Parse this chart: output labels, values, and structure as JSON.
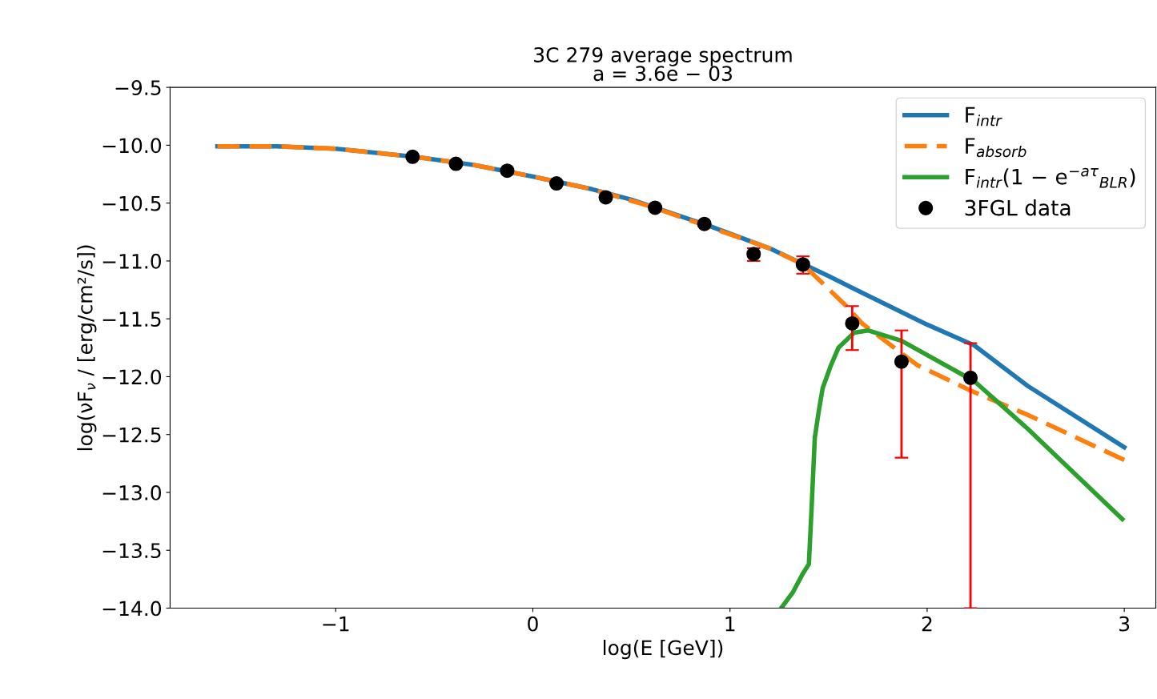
{
  "chart_data": {
    "type": "line",
    "title": "3C 279 average spectrum",
    "subtitle": "a = 3.6e − 03",
    "xlabel": "log(E [GeV])",
    "ylabel": "log(νF$_{ν}$ / [erg/cm²/s])",
    "xlim": [
      -1.84,
      3.16
    ],
    "xticks": [
      {
        "value": -1,
        "label": "−1"
      },
      0,
      1,
      2,
      3
    ],
    "ylim": [
      -14.0,
      -9.5
    ],
    "yticks": [
      {
        "value": -14.0,
        "label": "−14.0"
      },
      {
        "value": -13.5,
        "label": "−13.5"
      },
      {
        "value": -13.0,
        "label": "−13.0"
      },
      {
        "value": -12.5,
        "label": "−12.5"
      },
      {
        "value": -12.0,
        "label": "−12.0"
      },
      {
        "value": -11.5,
        "label": "−11.5"
      },
      {
        "value": -11.0,
        "label": "−11.0"
      },
      {
        "value": -10.5,
        "label": "−10.5"
      },
      {
        "value": -10.0,
        "label": "−10.0"
      },
      {
        "value": -9.5,
        "label": "−9.5"
      }
    ],
    "grid": false,
    "legend": "top right",
    "series": [
      {
        "name": "F$_{intr}$",
        "color": "#1f77b4",
        "line_style": "solid",
        "x": [
          -1.6,
          -1.3,
          -1.0,
          -0.6,
          -0.3,
          0,
          0.3,
          0.5,
          0.9,
          1.2,
          1.5,
          1.64,
          2.0,
          2.24,
          2.51,
          3.0
        ],
        "values": [
          -10.01,
          -10.01,
          -10.03,
          -10.1,
          -10.17,
          -10.27,
          -10.38,
          -10.47,
          -10.7,
          -10.89,
          -11.13,
          -11.25,
          -11.55,
          -11.73,
          -12.08,
          -12.61
        ]
      },
      {
        "name": "F$_{absorb}$",
        "color": "#ff7f0e",
        "line_style": "dashed",
        "x": [
          -1.6,
          -1.3,
          -1.0,
          -0.6,
          -0.3,
          0,
          0.3,
          0.6,
          0.95,
          1.2,
          1.37,
          1.48,
          1.59,
          1.67,
          1.95,
          2.22,
          2.51,
          3.0
        ],
        "values": [
          -10.01,
          -10.01,
          -10.03,
          -10.1,
          -10.17,
          -10.27,
          -10.38,
          -10.53,
          -10.74,
          -10.89,
          -11.03,
          -11.21,
          -11.39,
          -11.54,
          -11.9,
          -12.12,
          -12.33,
          -12.72
        ]
      },
      {
        "name": "F$_{intr}$(1 − e$^{−aτ}$$_{BLR}$)",
        "color": "#2ca02c",
        "line_style": "solid",
        "x": [
          1.26,
          1.32,
          1.37,
          1.4,
          1.413,
          1.43,
          1.45,
          1.47,
          1.51,
          1.55,
          1.63,
          1.7,
          1.87,
          2.24,
          2.51,
          2.99
        ],
        "values": [
          -14.0,
          -13.86,
          -13.7,
          -13.62,
          -13.17,
          -12.53,
          -12.3,
          -12.1,
          -11.91,
          -11.75,
          -11.62,
          -11.6,
          -11.69,
          -12.04,
          -12.45,
          -13.23
        ]
      },
      {
        "name": "3FGL data",
        "type": "scatter",
        "color": "#000000",
        "marker": "circle",
        "x": [
          -0.61,
          -0.39,
          -0.13,
          0.12,
          0.37,
          0.62,
          0.87,
          1.12,
          1.37,
          1.62,
          1.87,
          2.22
        ],
        "values": [
          -10.1,
          -10.16,
          -10.22,
          -10.33,
          -10.45,
          -10.54,
          -10.68,
          -10.94,
          -11.03,
          -11.54,
          -11.87,
          -12.01
        ],
        "errors": [
          null,
          null,
          null,
          null,
          null,
          null,
          null,
          [
            -11.0,
            -10.89
          ],
          [
            -11.11,
            -10.96
          ],
          [
            -11.77,
            -11.39
          ],
          [
            -12.7,
            -11.6
          ],
          [
            -14.0,
            -11.71
          ]
        ]
      }
    ]
  }
}
